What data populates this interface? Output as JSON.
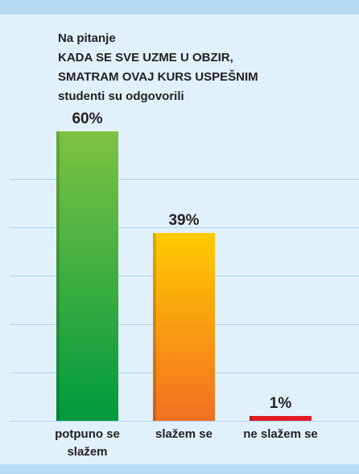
{
  "chart_data": {
    "type": "bar",
    "title": [
      "Na pitanje",
      "KADA SE SVE UZME U OBZIR,",
      "SMATRAM OVAJ KURS USPEŠNIM",
      "studenti su odgovorili"
    ],
    "categories": [
      "potpuno se slažem",
      "slažem se",
      "ne slažem se"
    ],
    "values": [
      60,
      39,
      1
    ],
    "value_labels": [
      "60%",
      "39%",
      "1%"
    ],
    "colors": [
      [
        "#7dc242",
        "#009a3e"
      ],
      [
        "#ffcc00",
        "#f26f21"
      ],
      [
        "#e31e24",
        "#e31e24"
      ]
    ],
    "ylim": [
      0,
      60
    ],
    "yticks": [
      0,
      10,
      20,
      30,
      40,
      50
    ],
    "grid": true
  }
}
